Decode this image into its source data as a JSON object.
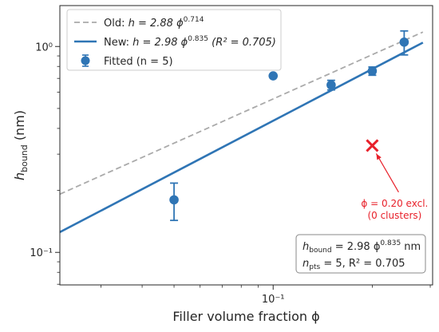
{
  "chart_data": {
    "type": "scatter",
    "xlabel": "Filler volume fraction ϕ",
    "ylabel": "h_bound (nm)",
    "xscale": "log",
    "yscale": "log",
    "xlim": [
      0.0225,
      0.305
    ],
    "ylim": [
      0.0695,
      1.58
    ],
    "x_tick_labels": [
      {
        "value": 0.1,
        "label": "10⁻¹"
      }
    ],
    "y_tick_labels": [
      {
        "value": 0.1,
        "label": "10⁻¹"
      },
      {
        "value": 1.0,
        "label": "10⁰"
      }
    ],
    "grid": false,
    "legend_position": "top-left",
    "series": [
      {
        "name": "Old: h = 2.88 ϕ^0.714",
        "kind": "line",
        "style": "dashed",
        "color": "#aaaaaa",
        "coef": 2.88,
        "exponent": 0.714,
        "x_range": [
          0.0225,
          0.285
        ]
      },
      {
        "name": "New: h = 2.98 ϕ^0.835 (R² = 0.705)",
        "kind": "line",
        "style": "solid",
        "color": "#2f75b5",
        "coef": 2.98,
        "exponent": 0.835,
        "x_range": [
          0.0225,
          0.285
        ]
      },
      {
        "name": "Fitted (n = 5)",
        "kind": "scatter",
        "color": "#2f75b5",
        "points": [
          {
            "x": 0.05,
            "y": 0.18,
            "err": 0.037
          },
          {
            "x": 0.1,
            "y": 0.72,
            "err": 0
          },
          {
            "x": 0.15,
            "y": 0.65,
            "err": 0.035
          },
          {
            "x": 0.2,
            "y": 0.76,
            "err": 0.035
          },
          {
            "x": 0.25,
            "y": 1.05,
            "err": 0.14
          }
        ]
      }
    ],
    "excluded_point": {
      "x": 0.2,
      "y": 0.33,
      "color": "#e8202a"
    },
    "annotation": {
      "line1": "ϕ = 0.20 excl.",
      "line2": "(0 clusters)",
      "color": "#e8202a",
      "text_x": 0.2,
      "text_y": 0.15
    },
    "legend": {
      "old": {
        "prefix": "Old: ",
        "formula": "h = 2.88 ϕ",
        "exp": "0.714"
      },
      "new": {
        "prefix": "New: ",
        "formula": "h = 2.98 ϕ",
        "exp": "0.835",
        "suffix": "(R² = 0.705)"
      },
      "fitted": {
        "label": "Fitted (n = 5)"
      }
    },
    "stats_box": {
      "line1_lhs": "h",
      "line1_sub": "bound",
      "line1_rhs": " = 2.98 ϕ",
      "line1_exp": "0.835",
      "line1_unit": " nm",
      "line2_lhs": "n",
      "line2_sub": "pts",
      "line2_rhs": " = 5, R² = 0.705"
    }
  }
}
